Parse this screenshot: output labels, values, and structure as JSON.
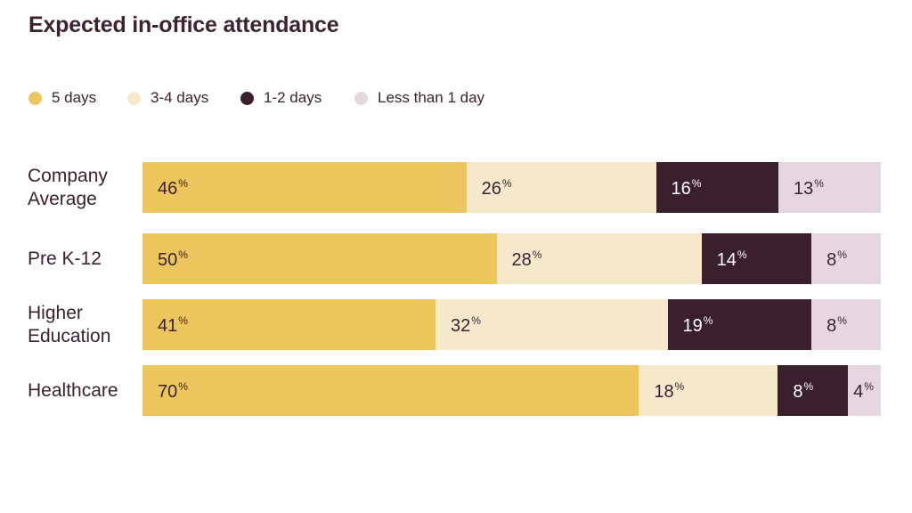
{
  "title": "Expected in-office attendance",
  "legend": [
    {
      "label": "5 days",
      "color": "#ecc65c"
    },
    {
      "label": "3-4 days",
      "color": "#f6e9cb"
    },
    {
      "label": "1-2 days",
      "color": "#3a1f2c"
    },
    {
      "label": "Less than 1 day",
      "color": "#e6d6df"
    }
  ],
  "chart_data": {
    "type": "bar",
    "orientation": "horizontal",
    "stacked": true,
    "title": "Expected in-office attendance",
    "categories": [
      "Company\nAverage",
      "Pre K-12",
      "Higher\nEducation",
      "Healthcare"
    ],
    "unit": "%",
    "series": [
      {
        "name": "5 days",
        "color": "#ecc65c",
        "text_color": "#3a2230",
        "values": [
          46,
          50,
          41,
          70
        ]
      },
      {
        "name": "3-4 days",
        "color": "#f6e9cb",
        "text_color": "#3a2230",
        "values": [
          26,
          28,
          32,
          18
        ]
      },
      {
        "name": "1-2 days",
        "color": "#3a1f2c",
        "text_color": "#ffffff",
        "values": [
          16,
          14,
          19,
          8
        ]
      },
      {
        "name": "Less than 1 day",
        "color": "#e6d6df",
        "text_color": "#3a2230",
        "values": [
          13,
          8,
          8,
          4
        ]
      }
    ],
    "legend_position": "top-left",
    "grid": false
  }
}
